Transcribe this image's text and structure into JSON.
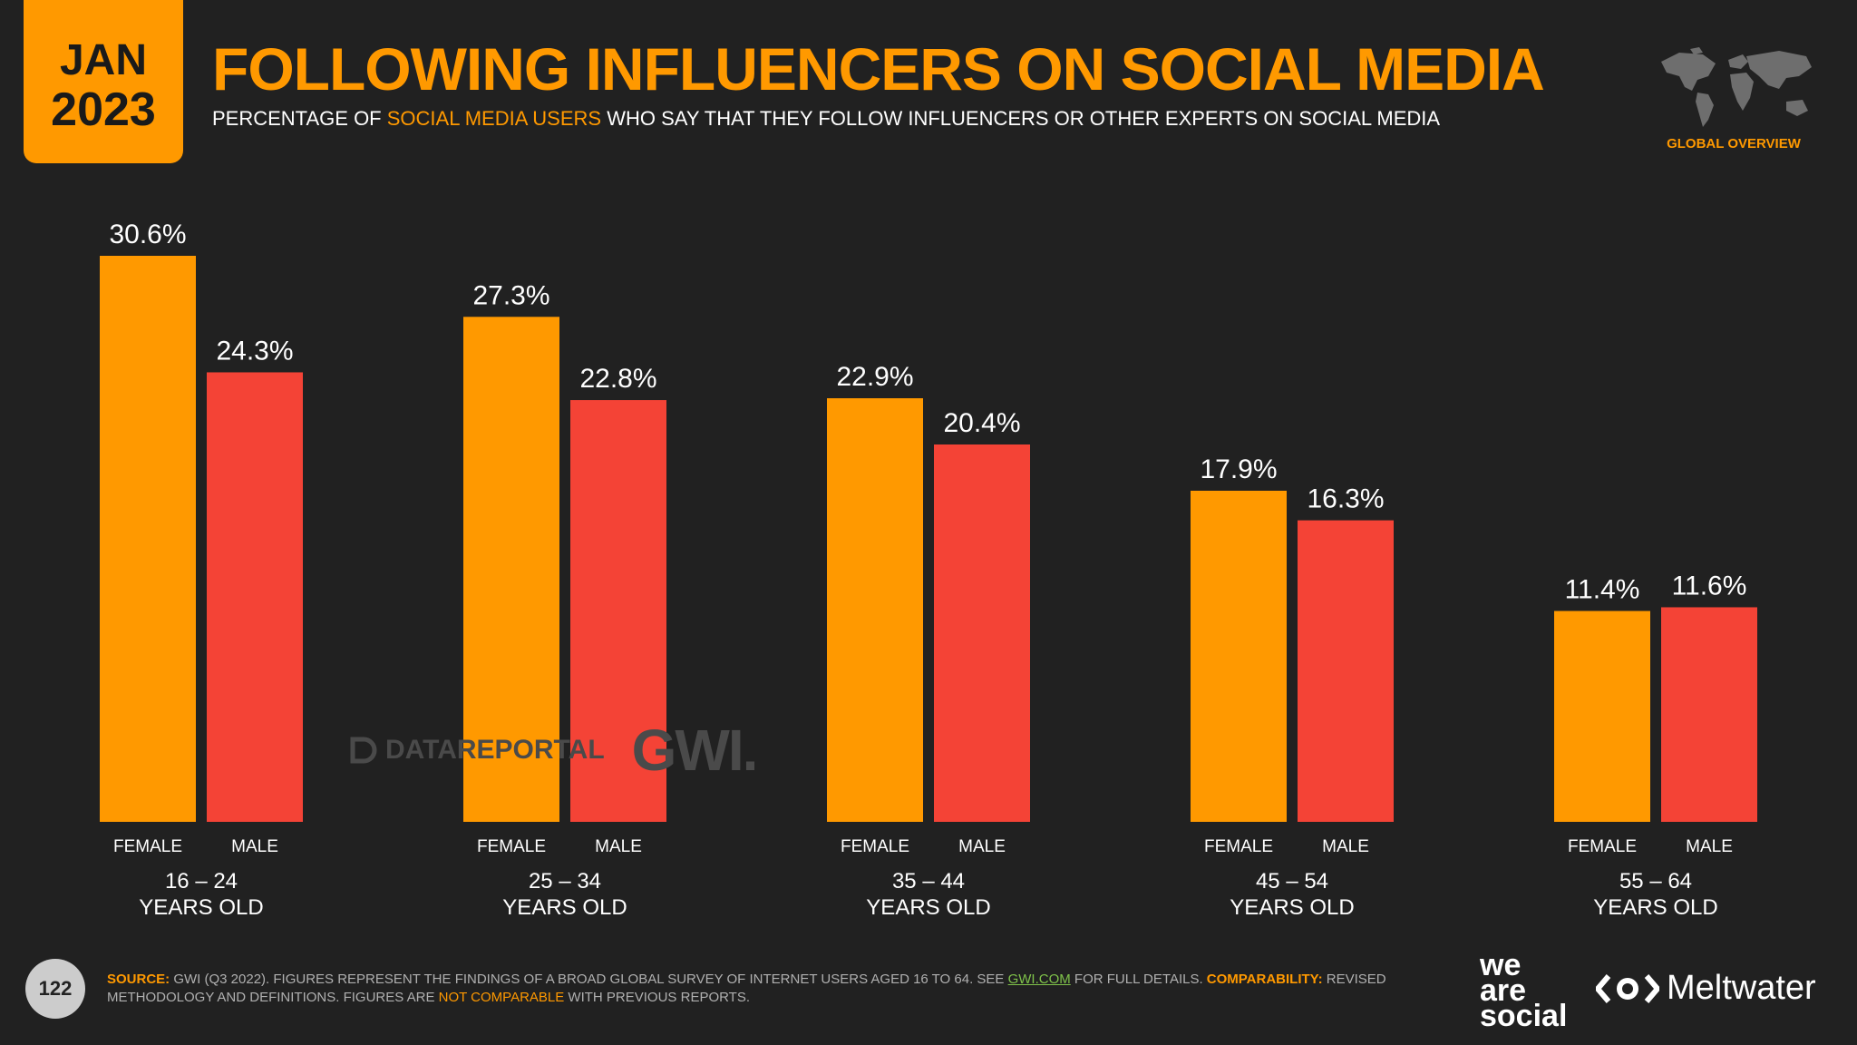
{
  "badge": {
    "month": "JAN",
    "year": "2023"
  },
  "title": "FOLLOWING INFLUENCERS ON SOCIAL MEDIA",
  "subtitle": {
    "part1": "PERCENTAGE OF ",
    "highlight": "SOCIAL MEDIA USERS",
    "part2": " WHO SAY THAT THEY FOLLOW INFLUENCERS OR OTHER EXPERTS ON SOCIAL MEDIA"
  },
  "global_label": "GLOBAL OVERVIEW",
  "watermark": {
    "datareportal": "DATAREPORTAL",
    "gwi": "GWI."
  },
  "page_number": "122",
  "source": {
    "label": "SOURCE:",
    "text1": " GWI (Q3 2022). FIGURES REPRESENT THE FINDINGS OF A BROAD GLOBAL SURVEY OF INTERNET USERS AGED 16 TO 64. SEE ",
    "link": "GWI.COM",
    "text2": " FOR FULL DETAILS. ",
    "comp_label": "COMPARABILITY:",
    "text3": " REVISED METHODOLOGY AND DEFINITIONS. FIGURES ARE ",
    "not_comparable": "NOT COMPARABLE",
    "text4": " WITH PREVIOUS REPORTS."
  },
  "brands": {
    "was_1": "we",
    "was_2": "are",
    "was_3": "social",
    "meltwater": "Meltwater"
  },
  "colors": {
    "female": "#FF9900",
    "male": "#F44336",
    "accent": "#FF9900"
  },
  "chart_data": {
    "type": "bar",
    "title": "FOLLOWING INFLUENCERS ON SOCIAL MEDIA",
    "categories": [
      {
        "line1": "16 – 24",
        "line2": "YEARS OLD"
      },
      {
        "line1": "25 – 34",
        "line2": "YEARS OLD"
      },
      {
        "line1": "35 – 44",
        "line2": "YEARS OLD"
      },
      {
        "line1": "45 – 54",
        "line2": "YEARS OLD"
      },
      {
        "line1": "55 – 64",
        "line2": "YEARS OLD"
      }
    ],
    "series": [
      {
        "name": "FEMALE",
        "values": [
          30.6,
          27.3,
          22.9,
          17.9,
          11.4
        ],
        "labels": [
          "30.6%",
          "27.3%",
          "22.9%",
          "17.9%",
          "11.4%"
        ]
      },
      {
        "name": "MALE",
        "values": [
          24.3,
          22.8,
          20.4,
          16.3,
          11.6
        ],
        "labels": [
          "24.3%",
          "22.8%",
          "20.4%",
          "16.3%",
          "11.6%"
        ]
      }
    ],
    "unit": "%",
    "ylim": [
      0,
      30.6
    ],
    "grid": false,
    "legend": "none"
  }
}
